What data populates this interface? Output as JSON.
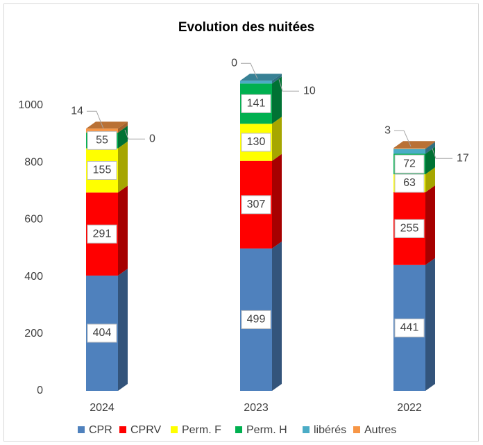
{
  "chart_data": {
    "type": "bar",
    "stacked": true,
    "title": "Evolution des nuitées",
    "categories": [
      "2024",
      "2023",
      "2022"
    ],
    "series": [
      {
        "name": "CPR",
        "color": "#4f81bd",
        "values": [
          404,
          499,
          441
        ]
      },
      {
        "name": "CPRV",
        "color": "#ff0000",
        "values": [
          291,
          307,
          255
        ]
      },
      {
        "name": "Perm. F",
        "color": "#ffff00",
        "values": [
          155,
          130,
          63
        ]
      },
      {
        "name": "Perm. H",
        "color": "#00b050",
        "values": [
          55,
          141,
          72
        ]
      },
      {
        "name": "libérés",
        "color": "#4bacc6",
        "values": [
          0,
          10,
          17
        ]
      },
      {
        "name": "Autres",
        "color": "#f79646",
        "values": [
          14,
          0,
          3
        ]
      }
    ],
    "ylim": [
      0,
      1200
    ],
    "yticks": [
      0,
      200,
      400,
      600,
      800,
      1000
    ],
    "grid": false,
    "legend": "bottom"
  }
}
